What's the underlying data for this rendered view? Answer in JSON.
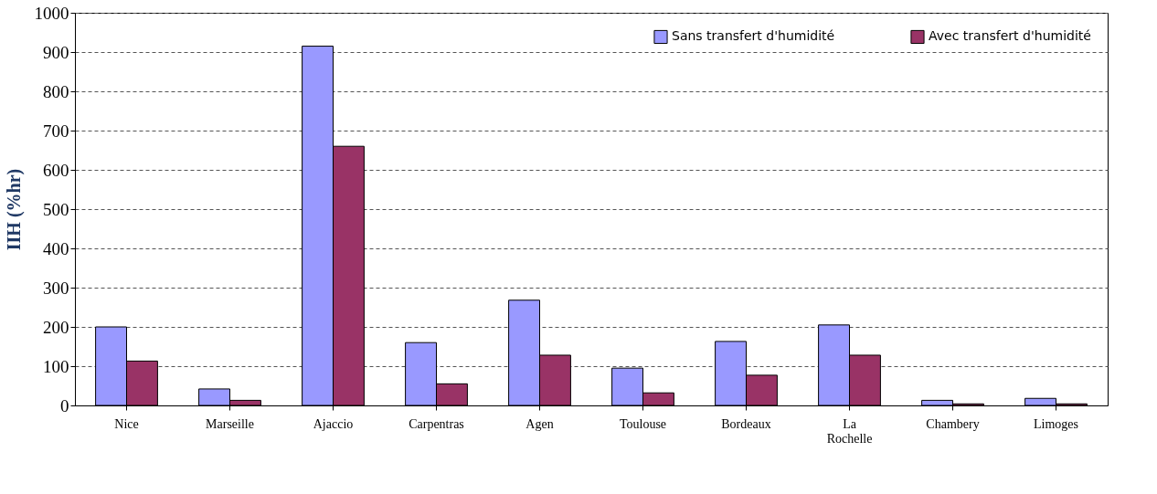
{
  "chart_data": {
    "type": "bar",
    "ylabel": "IIH (%hr)",
    "categories": [
      "Nice",
      "Marseille",
      "Ajaccio",
      "Carpentras",
      "Agen",
      "Toulouse",
      "Bordeaux",
      "La Rochelle",
      "Chambery",
      "Limoges"
    ],
    "series": [
      {
        "name": "Sans transfert d'humidité",
        "color": "#9999ff",
        "values": [
          200,
          42,
          915,
          160,
          268,
          95,
          163,
          205,
          13,
          18
        ]
      },
      {
        "name": "Avec transfert d'humidité",
        "color": "#993366",
        "values": [
          113,
          13,
          660,
          55,
          128,
          32,
          77,
          128,
          4,
          4
        ]
      }
    ],
    "ylim": [
      0,
      1000
    ],
    "yticks": [
      0,
      100,
      200,
      300,
      400,
      500,
      600,
      700,
      800,
      900,
      1000
    ],
    "grid": "y",
    "legend": "top right"
  }
}
